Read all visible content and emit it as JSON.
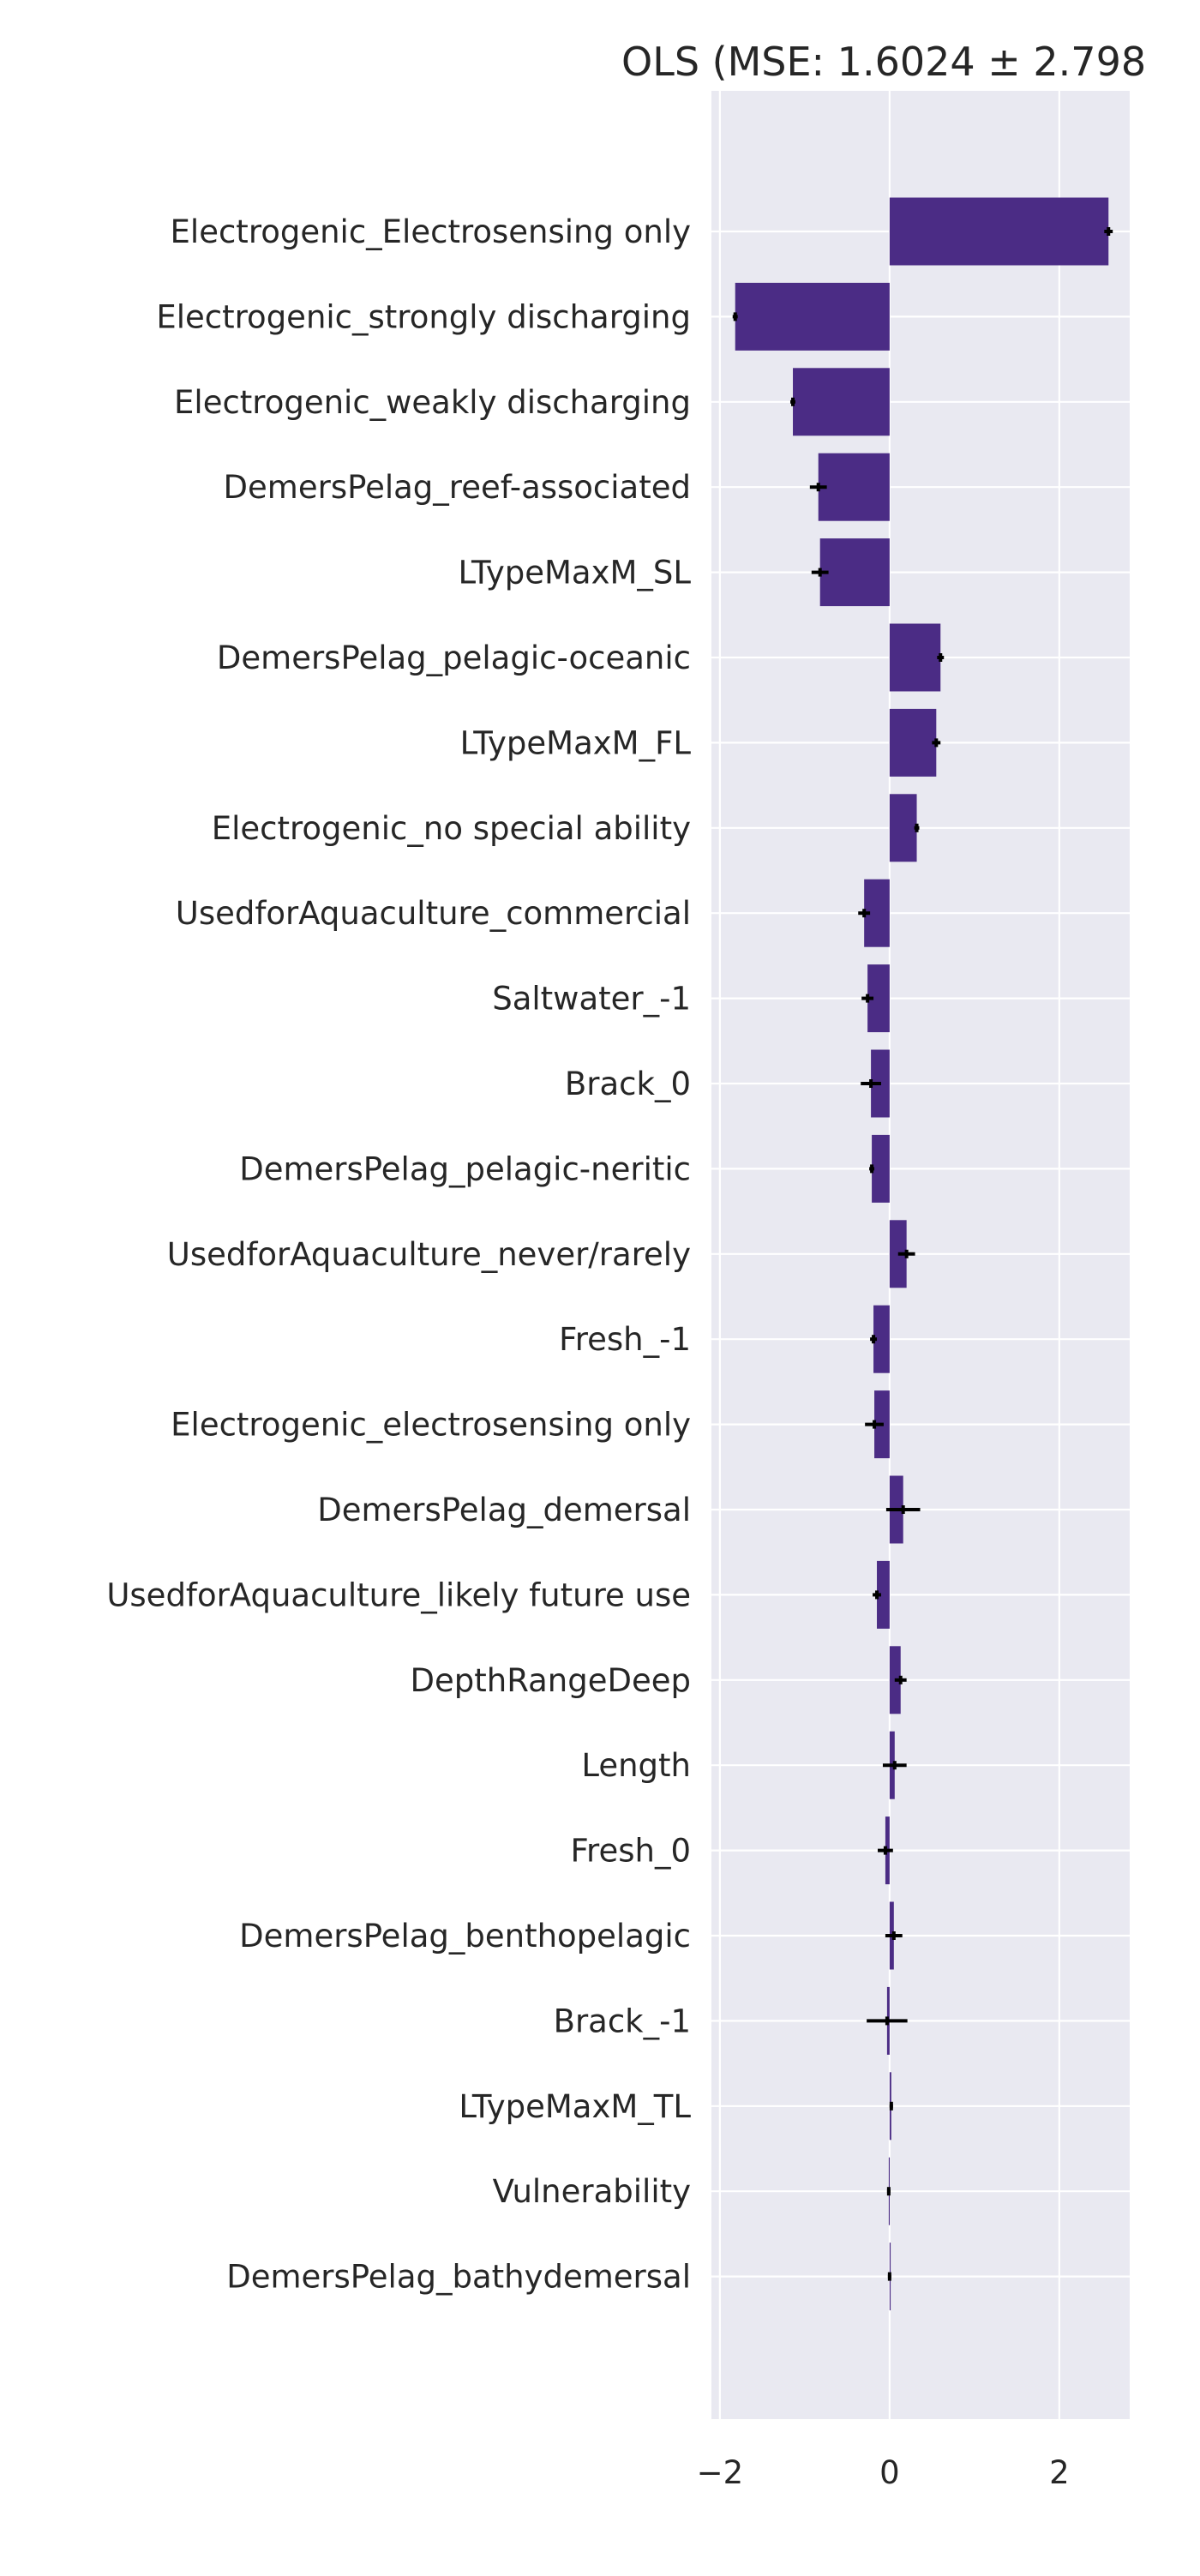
{
  "chart_data": {
    "type": "bar",
    "orientation": "horizontal",
    "title": "OLS (MSE: 1.6024 ± 2.798",
    "xlabel": "",
    "ylabel": "",
    "xlim": [
      -2.1,
      2.83
    ],
    "xticks": [
      -2,
      0,
      2
    ],
    "xtick_labels": [
      "−2",
      "0",
      "2"
    ],
    "grid": true,
    "legend": "none",
    "colors": {
      "bar": "#4b2c85",
      "error": "#000000",
      "plot_bg": "#e9e9f1",
      "grid": "#ffffff",
      "text": "#262626"
    },
    "categories": [
      "Electrogenic_Electrosensing only",
      "Electrogenic_strongly discharging",
      "Electrogenic_weakly discharging",
      "DemersPelag_reef-associated",
      "LTypeMaxM_SL",
      "DemersPelag_pelagic-oceanic",
      "LTypeMaxM_FL",
      "Electrogenic_no special ability",
      "UsedforAquaculture_commercial",
      "Saltwater_-1",
      "Brack_0",
      "DemersPelag_pelagic-neritic",
      "UsedforAquaculture_never/rarely",
      "Fresh_-1",
      "Electrogenic_electrosensing only",
      "DemersPelag_demersal",
      "UsedforAquaculture_likely future use",
      "DepthRangeDeep",
      "Length",
      "Fresh_0",
      "DemersPelag_benthopelagic",
      "Brack_-1",
      "LTypeMaxM_TL",
      "Vulnerability",
      "DemersPelag_bathydemersal"
    ],
    "values": [
      2.58,
      -1.82,
      -1.14,
      -0.84,
      -0.82,
      0.6,
      0.55,
      0.32,
      -0.3,
      -0.26,
      -0.22,
      -0.21,
      0.2,
      -0.19,
      -0.18,
      0.16,
      -0.15,
      0.13,
      0.06,
      -0.05,
      0.05,
      -0.03,
      0.02,
      -0.01,
      0.0
    ],
    "errors": [
      0.05,
      0.03,
      0.03,
      0.1,
      0.1,
      0.04,
      0.05,
      0.03,
      0.07,
      0.07,
      0.12,
      0.03,
      0.1,
      0.04,
      0.11,
      0.2,
      0.05,
      0.07,
      0.14,
      0.09,
      0.1,
      0.24,
      0.02,
      0.02,
      0.02
    ]
  }
}
